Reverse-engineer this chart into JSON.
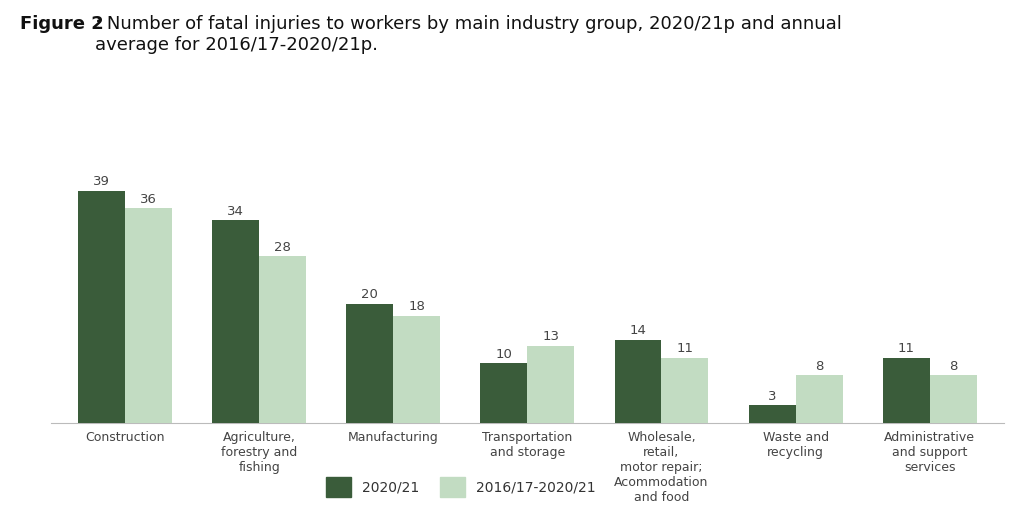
{
  "title_bold": "Figure 2",
  "title_rest": ": Number of fatal injuries to workers by main industry group, 2020/21p and annual\naverage for 2016/17-2020/21p.",
  "categories": [
    "Construction",
    "Agriculture,\nforestry and\nfishing",
    "Manufacturing",
    "Transportation\nand storage",
    "Wholesale,\nretail,\nmotor repair;\nAcommodation\nand food",
    "Waste and\nrecycling",
    "Administrative\nand support\nservices"
  ],
  "values_2021": [
    39,
    34,
    20,
    10,
    14,
    3,
    11
  ],
  "values_avg": [
    36,
    28,
    18,
    13,
    11,
    8,
    8
  ],
  "color_2021": "#3a5c3a",
  "color_avg": "#c2dcc2",
  "bar_width": 0.35,
  "ylim": [
    0,
    45
  ],
  "legend_label_2021": "2020/21",
  "legend_label_avg": "2016/17-2020/21",
  "background_color": "#ffffff",
  "value_fontsize": 9.5,
  "label_fontsize": 9,
  "title_fontsize": 13
}
